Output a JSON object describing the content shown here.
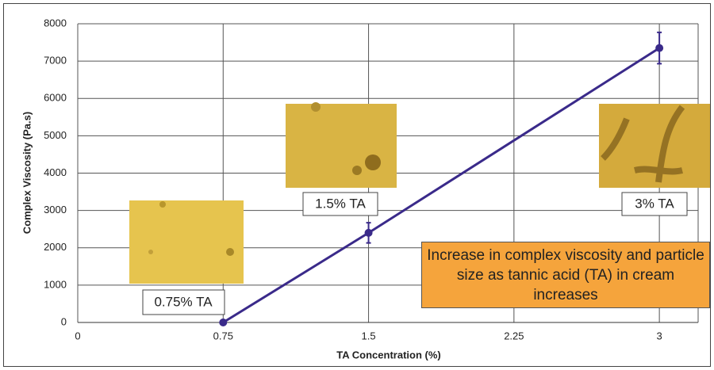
{
  "chart_data": {
    "type": "line",
    "x_label": "TA Concentration (%)",
    "y_label": "Complex Viscosity (Pa.s)",
    "annotation": "Increase in complex viscosity and particle size as tannic acid (TA) in cream increases",
    "x": [
      0.75,
      1.5,
      3
    ],
    "series": [
      {
        "color": "#3a2a8a",
        "values": [
          0,
          2400,
          7350
        ],
        "errors": [
          0,
          270,
          420
        ]
      }
    ],
    "xlim": [
      0,
      3.2
    ],
    "xticks": [
      0,
      0.75,
      1.5,
      2.25,
      3
    ],
    "ylim": [
      0,
      8000
    ],
    "yticks": [
      0,
      1000,
      2000,
      3000,
      4000,
      5000,
      6000,
      7000,
      8000
    ],
    "grid": true
  },
  "labels": [
    "0.75% TA",
    "1.5% TA",
    "3% TA"
  ]
}
